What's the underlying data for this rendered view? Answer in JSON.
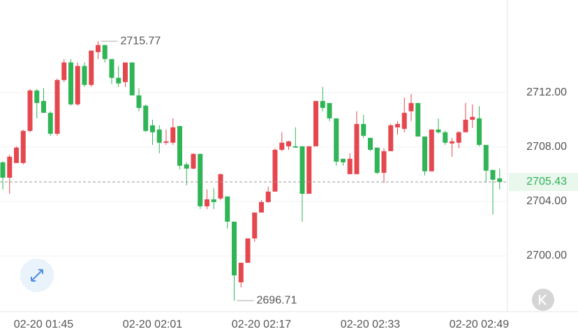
{
  "chart_data": {
    "type": "candlestick",
    "up_color": "#e5474f",
    "down_color": "#2fb456",
    "categories": [
      null,
      null,
      null,
      null,
      null,
      null,
      "02-20 01:45",
      null,
      null,
      null,
      null,
      null,
      null,
      null,
      null,
      null,
      null,
      null,
      null,
      null,
      null,
      null,
      "02-20 02:01",
      null,
      null,
      null,
      null,
      null,
      null,
      null,
      null,
      null,
      null,
      null,
      null,
      null,
      null,
      null,
      "02-20 02:17",
      null,
      null,
      null,
      null,
      null,
      null,
      null,
      null,
      null,
      null,
      null,
      null,
      null,
      null,
      null,
      "02-20 02:33",
      null,
      null,
      null,
      null,
      null,
      null,
      null,
      null,
      null,
      null,
      null,
      null,
      null,
      null,
      null,
      "02-20 02:49",
      null,
      null,
      null
    ],
    "ohlc": [
      [
        2706.87,
        2706.95,
        2704.87,
        2705.74
      ],
      [
        2705.74,
        2707.44,
        2704.56,
        2707.28
      ],
      [
        2706.82,
        2708.05,
        2706.82,
        2707.95
      ],
      [
        2706.82,
        2709.28,
        2706.72,
        2709.18
      ],
      [
        2709.18,
        2712.26,
        2709.08,
        2712.15
      ],
      [
        2712.15,
        2712.26,
        2710.1,
        2711.23
      ],
      [
        2711.38,
        2712.31,
        2710.51,
        2710.51
      ],
      [
        2710.51,
        2710.62,
        2708.82,
        2708.97
      ],
      [
        2708.97,
        2713.03,
        2708.82,
        2712.92
      ],
      [
        2712.92,
        2714.46,
        2712.77,
        2714.21
      ],
      [
        2714.21,
        2714.46,
        2711.03,
        2711.13
      ],
      [
        2711.13,
        2714.21,
        2711.03,
        2713.95
      ],
      [
        2713.95,
        2714.21,
        2712.41,
        2712.56
      ],
      [
        2712.56,
        2715.08,
        2712.41,
        2715.08
      ],
      [
        2714.97,
        2715.77,
        2714.46,
        2715.49
      ],
      [
        2715.49,
        2715.49,
        2714.21,
        2714.46
      ],
      [
        2714.46,
        2714.46,
        2712.62,
        2713.08
      ],
      [
        2713.08,
        2713.95,
        2712.41,
        2712.67
      ],
      [
        2712.77,
        2714.21,
        2712.41,
        2714.21
      ],
      [
        2714.21,
        2714.21,
        2711.79,
        2711.79
      ],
      [
        2711.79,
        2712.31,
        2710.62,
        2710.87
      ],
      [
        2711.03,
        2711.13,
        2709.08,
        2709.18
      ],
      [
        2709.59,
        2710.0,
        2708.15,
        2709.08
      ],
      [
        2709.28,
        2709.59,
        2707.54,
        2708.31
      ],
      [
        2708.31,
        2709.28,
        2708.15,
        2708.41
      ],
      [
        2708.31,
        2710.1,
        2708.15,
        2709.44
      ],
      [
        2709.54,
        2709.54,
        2706.36,
        2706.62
      ],
      [
        2706.72,
        2706.87,
        2705.18,
        2706.41
      ],
      [
        2706.41,
        2707.54,
        2706.36,
        2707.49
      ],
      [
        2707.49,
        2707.49,
        2703.44,
        2703.64
      ],
      [
        2703.64,
        2704.87,
        2703.44,
        2704.15
      ],
      [
        2704.15,
        2704.97,
        2703.44,
        2703.95
      ],
      [
        2704.21,
        2706.05,
        2704.1,
        2706.0
      ],
      [
        2704.36,
        2704.36,
        2702.0,
        2702.51
      ],
      [
        2702.51,
        2702.51,
        2696.71,
        2698.56
      ],
      [
        2698.05,
        2699.49,
        2697.69,
        2699.49
      ],
      [
        2699.49,
        2701.28,
        2699.49,
        2701.28
      ],
      [
        2701.28,
        2703.18,
        2701.03,
        2703.18
      ],
      [
        2703.18,
        2704.1,
        2703.18,
        2703.95
      ],
      [
        2703.95,
        2705.08,
        2703.9,
        2704.72
      ],
      [
        2704.72,
        2707.9,
        2704.72,
        2707.79
      ],
      [
        2707.79,
        2709.08,
        2707.69,
        2708.31
      ],
      [
        2708.05,
        2708.46,
        2707.79,
        2708.41
      ],
      [
        2708.05,
        2709.44,
        2707.95,
        2707.95
      ],
      [
        2708.05,
        2708.05,
        2702.51,
        2704.56
      ],
      [
        2704.56,
        2708.05,
        2704.56,
        2708.05
      ],
      [
        2708.05,
        2711.38,
        2708.05,
        2711.38
      ],
      [
        2711.38,
        2712.41,
        2710.62,
        2710.87
      ],
      [
        2711.23,
        2711.23,
        2709.9,
        2710.1
      ],
      [
        2710.1,
        2710.1,
        2706.62,
        2706.92
      ],
      [
        2707.13,
        2707.13,
        2706.62,
        2706.87
      ],
      [
        2706.0,
        2707.54,
        2706.0,
        2707.13
      ],
      [
        2706.0,
        2710.62,
        2706.0,
        2709.69
      ],
      [
        2709.69,
        2710.36,
        2708.67,
        2708.82
      ],
      [
        2708.67,
        2708.67,
        2707.69,
        2707.79
      ],
      [
        2707.95,
        2707.95,
        2706.0,
        2706.1
      ],
      [
        2706.1,
        2707.9,
        2705.38,
        2707.69
      ],
      [
        2707.69,
        2709.69,
        2707.69,
        2709.59
      ],
      [
        2709.44,
        2709.9,
        2708.9,
        2709.69
      ],
      [
        2709.33,
        2711.64,
        2709.08,
        2710.51
      ],
      [
        2710.62,
        2711.9,
        2709.9,
        2711.23
      ],
      [
        2711.23,
        2711.23,
        2708.77,
        2708.77
      ],
      [
        2708.77,
        2708.77,
        2705.9,
        2706.21
      ],
      [
        2706.21,
        2709.28,
        2706.21,
        2709.28
      ],
      [
        2709.28,
        2710.1,
        2708.97,
        2709.08
      ],
      [
        2709.08,
        2709.2,
        2708.15,
        2708.31
      ],
      [
        2708.26,
        2708.67,
        2707.28,
        2708.41
      ],
      [
        2708.31,
        2709.18,
        2707.9,
        2709.08
      ],
      [
        2709.08,
        2711.23,
        2709.08,
        2710.0
      ],
      [
        2710.0,
        2711.13,
        2709.4,
        2710.21
      ],
      [
        2710.1,
        2711.0,
        2708.05,
        2708.15
      ],
      [
        2708.15,
        2708.15,
        2705.38,
        2706.26
      ],
      [
        2706.31,
        2706.31,
        2703.03,
        2705.59
      ],
      [
        2705.69,
        2706.41,
        2704.87,
        2705.43
      ]
    ],
    "ylim": [
      2695.9,
      2718.8
    ],
    "yticks": [
      {
        "value": 2700,
        "label": "2700.00"
      },
      {
        "value": 2704,
        "label": "2704.00"
      },
      {
        "value": 2708,
        "label": "2708.00"
      },
      {
        "value": 2712,
        "label": "2712.00"
      }
    ],
    "grid": true,
    "annotations": {
      "high": 2715.77,
      "low": 2696.71,
      "last": 2705.43
    }
  }
}
